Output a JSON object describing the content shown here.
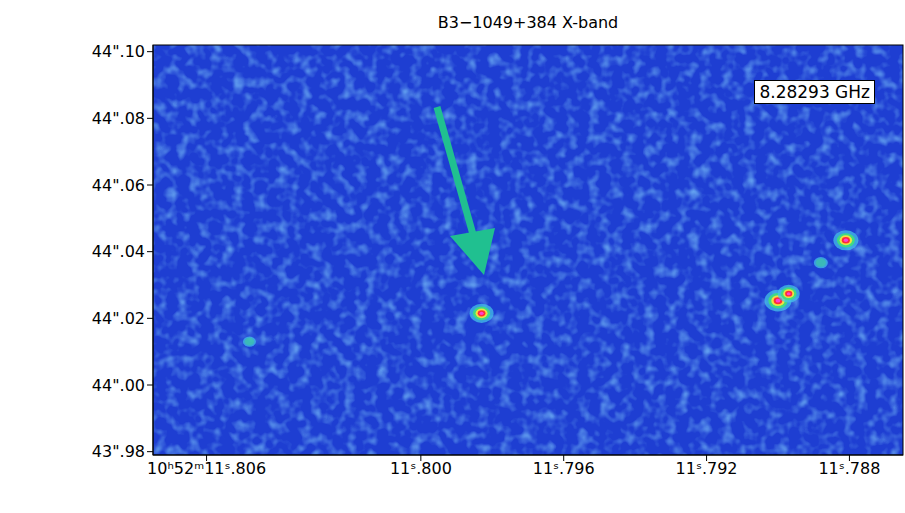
{
  "chart_data": {
    "type": "scatter",
    "title": "B3−1049+384 X-band",
    "annotations": [
      "8.28293 GHz"
    ],
    "x": [
      11.8048,
      11.7983,
      11.79,
      11.7897,
      11.7888,
      11.7881
    ],
    "y": [
      44.013,
      44.0215,
      44.0253,
      44.0274,
      44.0367,
      44.0434
    ],
    "intensity": [
      0.25,
      0.8,
      0.95,
      0.7,
      0.3,
      0.85
    ],
    "xlim": [
      11.8075,
      11.7865
    ],
    "xticks": [
      {
        "value": 11.806,
        "label": "10ʰ52ᵐ11ˢ.806"
      },
      {
        "value": 11.8,
        "label": "11ˢ.800"
      },
      {
        "value": 11.796,
        "label": "11ˢ.796"
      },
      {
        "value": 11.792,
        "label": "11ˢ.792"
      },
      {
        "value": 11.788,
        "label": "11ˢ.788"
      }
    ],
    "ylim": [
      43.979,
      44.102
    ],
    "yticks": [
      {
        "value": 43.98,
        "label": "43\".98"
      },
      {
        "value": 44.0,
        "label": "44\".00"
      },
      {
        "value": 44.02,
        "label": "44\".02"
      },
      {
        "value": 44.04,
        "label": "44\".04"
      },
      {
        "value": 44.06,
        "label": "44\".06"
      },
      {
        "value": 44.08,
        "label": "44\".08"
      },
      {
        "value": 44.1,
        "label": "44\".10"
      }
    ]
  }
}
